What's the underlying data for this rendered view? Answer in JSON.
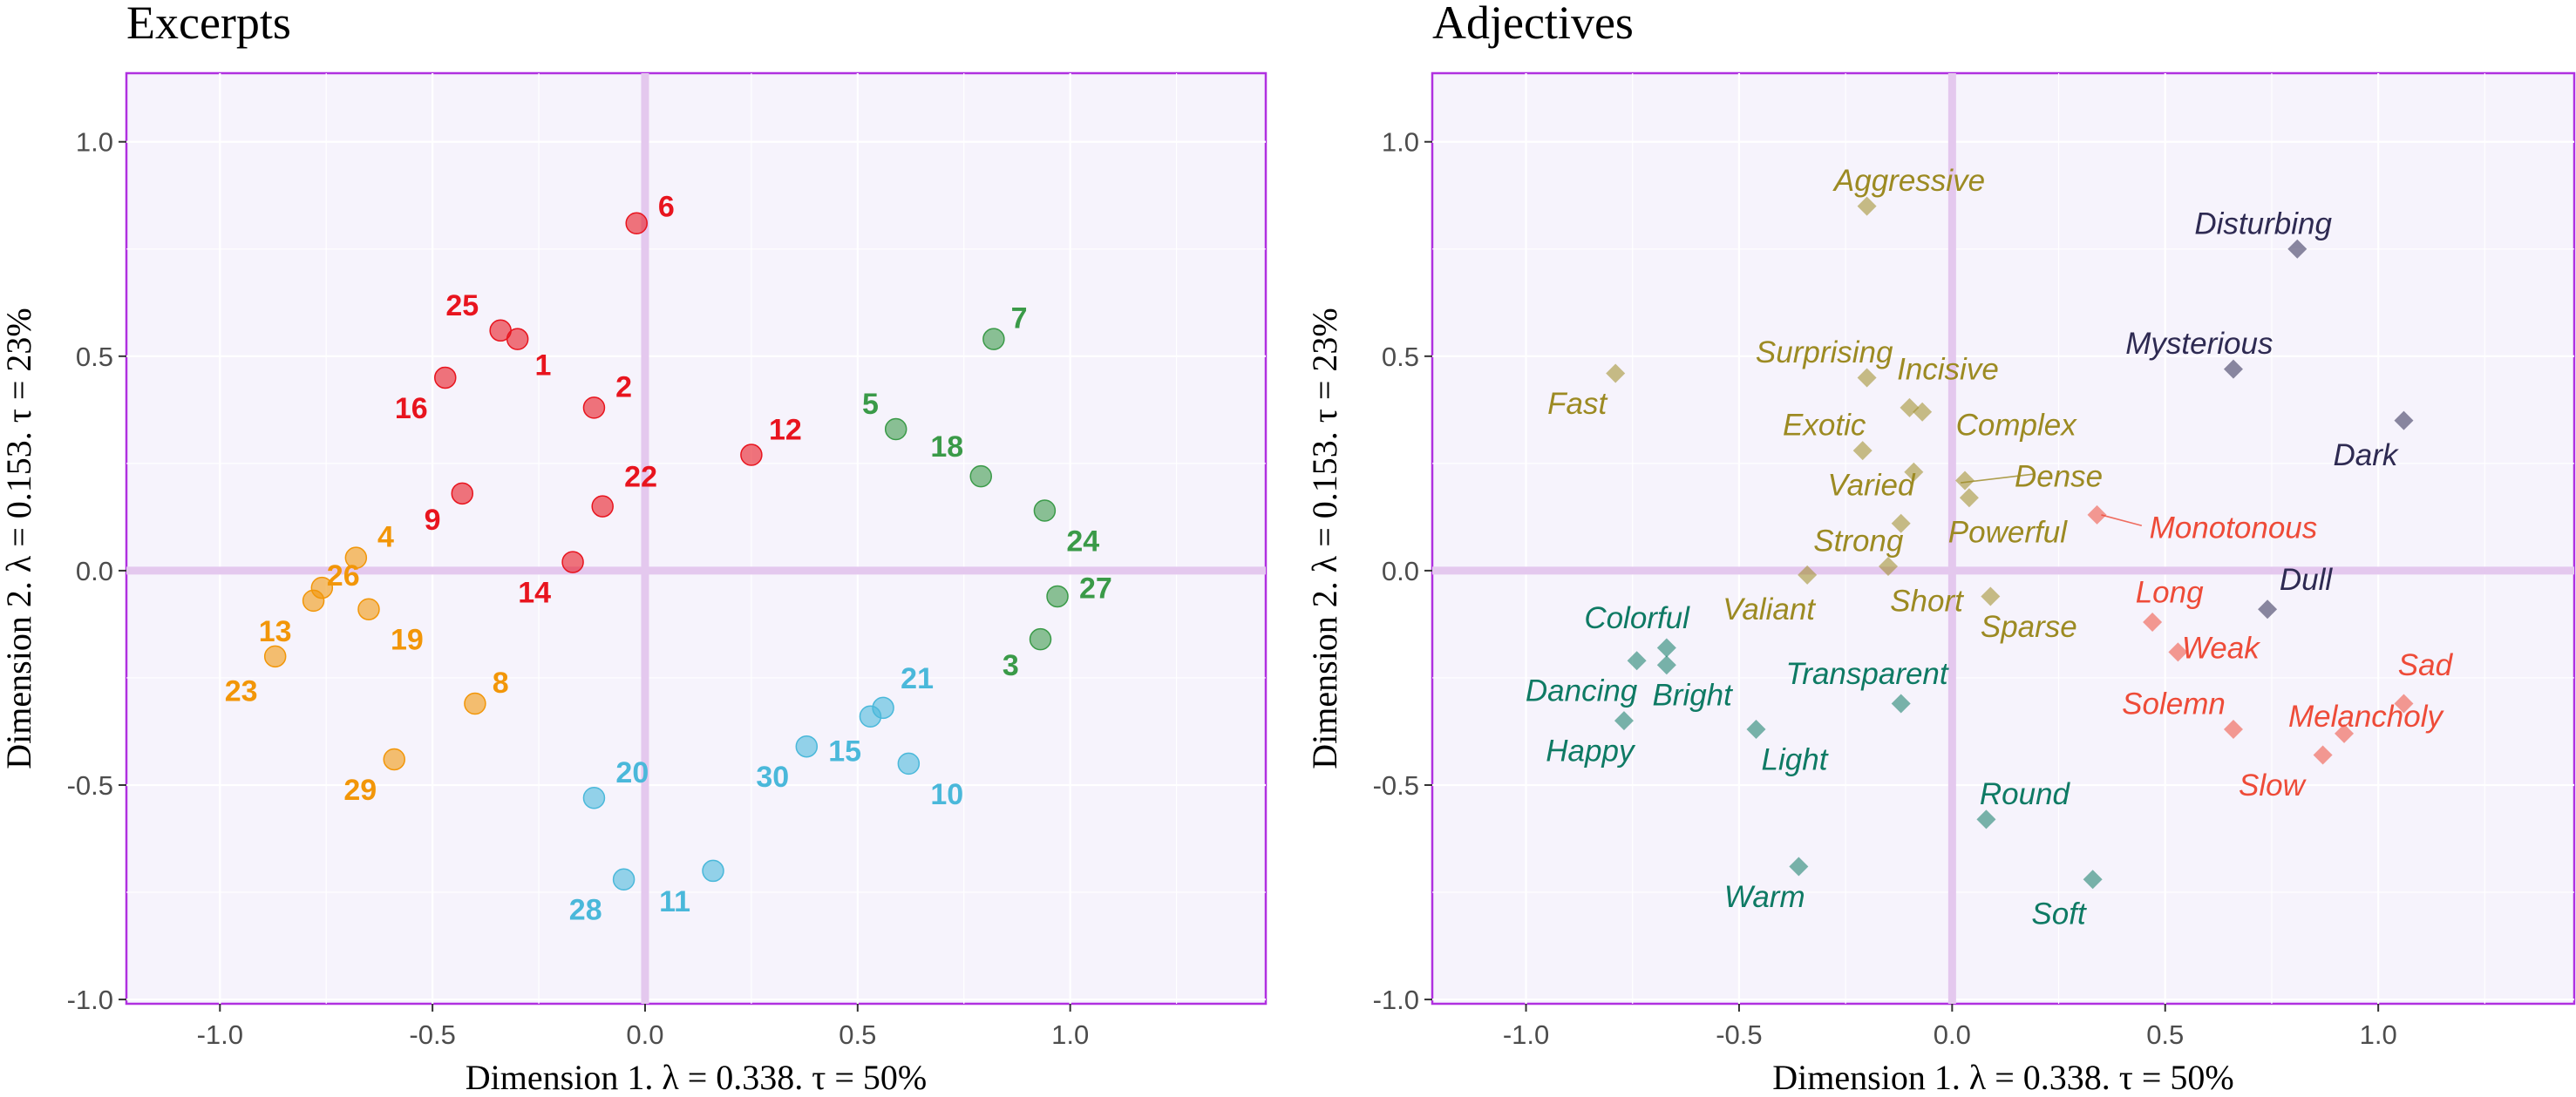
{
  "colors": {
    "red": "#e8141e",
    "orange": "#f29608",
    "green": "#3a9a48",
    "blue": "#4ab8da",
    "olive": "#9c8a22",
    "navy": "#2e2a52",
    "salmon": "#ee4b38",
    "teal": "#0e7a64",
    "panel_bg": "#f6f3fc",
    "panel_border": "#b030e0",
    "grid": "#ffffff",
    "zero_line": "#e4c8ee"
  },
  "chart_data": [
    {
      "type": "scatter",
      "title": "Excerpts",
      "xlabel": "Dimension 1.   λ = 0.338.  τ = 50%",
      "ylabel": "Dimension 2.   λ = 0.153.  τ = 23%",
      "xlim": [
        -1.22,
        1.46
      ],
      "ylim": [
        -1.01,
        1.16
      ],
      "xticks": [
        "-1.0",
        "-0.5",
        "0.0",
        "0.5",
        "1.0"
      ],
      "yticks": [
        "1.0",
        "0.5",
        "0.0",
        "-0.5",
        "-1.0"
      ],
      "grid": true,
      "marker": "circle",
      "series": [
        {
          "color_key": "red",
          "points": [
            {
              "label": "6",
              "x": -0.02,
              "y": 0.81,
              "lx": 0.05,
              "ly": 0.85
            },
            {
              "label": "25",
              "x": -0.34,
              "y": 0.56,
              "lx": -0.43,
              "ly": 0.62
            },
            {
              "label": "1",
              "x": -0.3,
              "y": 0.54,
              "lx": -0.24,
              "ly": 0.48
            },
            {
              "label": "2",
              "x": -0.12,
              "y": 0.38,
              "lx": -0.05,
              "ly": 0.43
            },
            {
              "label": "16",
              "x": -0.47,
              "y": 0.45,
              "lx": -0.55,
              "ly": 0.38
            },
            {
              "label": "12",
              "x": 0.25,
              "y": 0.27,
              "lx": 0.33,
              "ly": 0.33
            },
            {
              "label": "22",
              "x": -0.1,
              "y": 0.15,
              "lx": -0.01,
              "ly": 0.22
            },
            {
              "label": "9",
              "x": -0.43,
              "y": 0.18,
              "lx": -0.5,
              "ly": 0.12
            },
            {
              "label": "14",
              "x": -0.17,
              "y": 0.02,
              "lx": -0.26,
              "ly": -0.05
            }
          ]
        },
        {
          "color_key": "orange",
          "points": [
            {
              "label": "4",
              "x": -0.68,
              "y": 0.03,
              "lx": -0.61,
              "ly": 0.08
            },
            {
              "label": "26",
              "x": -0.76,
              "y": -0.04,
              "lx": -0.71,
              "ly": -0.01
            },
            {
              "label": "13",
              "x": -0.78,
              "y": -0.07,
              "lx": -0.87,
              "ly": -0.14
            },
            {
              "label": "19",
              "x": -0.65,
              "y": -0.09,
              "lx": -0.56,
              "ly": -0.16
            },
            {
              "label": "23",
              "x": -0.87,
              "y": -0.2,
              "lx": -0.95,
              "ly": -0.28
            },
            {
              "label": "8",
              "x": -0.4,
              "y": -0.31,
              "lx": -0.34,
              "ly": -0.26
            },
            {
              "label": "29",
              "x": -0.59,
              "y": -0.44,
              "lx": -0.67,
              "ly": -0.51
            }
          ]
        },
        {
          "color_key": "green",
          "points": [
            {
              "label": "7",
              "x": 0.82,
              "y": 0.54,
              "lx": 0.88,
              "ly": 0.59
            },
            {
              "label": "5",
              "x": 0.59,
              "y": 0.33,
              "lx": 0.53,
              "ly": 0.39
            },
            {
              "label": "18",
              "x": 0.79,
              "y": 0.22,
              "lx": 0.71,
              "ly": 0.29
            },
            {
              "label": "24",
              "x": 0.94,
              "y": 0.14,
              "lx": 1.03,
              "ly": 0.07
            },
            {
              "label": "27",
              "x": 0.97,
              "y": -0.06,
              "lx": 1.06,
              "ly": -0.04
            },
            {
              "label": "3",
              "x": 0.93,
              "y": -0.16,
              "lx": 0.86,
              "ly": -0.22
            }
          ]
        },
        {
          "color_key": "blue",
          "points": [
            {
              "label": "21",
              "x": 0.56,
              "y": -0.32,
              "lx": 0.64,
              "ly": -0.25
            },
            {
              "label": "15",
              "x": 0.53,
              "y": -0.34,
              "lx": 0.47,
              "ly": -0.42
            },
            {
              "label": "30",
              "x": 0.38,
              "y": -0.41,
              "lx": 0.3,
              "ly": -0.48
            },
            {
              "label": "10",
              "x": 0.62,
              "y": -0.45,
              "lx": 0.71,
              "ly": -0.52
            },
            {
              "label": "20",
              "x": -0.12,
              "y": -0.53,
              "lx": -0.03,
              "ly": -0.47
            },
            {
              "label": "11",
              "x": 0.16,
              "y": -0.7,
              "lx": 0.07,
              "ly": -0.77
            },
            {
              "label": "28",
              "x": -0.05,
              "y": -0.72,
              "lx": -0.14,
              "ly": -0.79
            }
          ]
        }
      ]
    },
    {
      "type": "scatter",
      "title": "Adjectives",
      "xlabel": "Dimension 1.   λ = 0.338.  τ = 50%",
      "ylabel": "Dimension 2.   λ = 0.153.  τ = 23%",
      "xlim": [
        -1.22,
        1.46
      ],
      "ylim": [
        -1.01,
        1.16
      ],
      "xticks": [
        "-1.0",
        "-0.5",
        "0.0",
        "0.5",
        "1.0"
      ],
      "yticks": [
        "1.0",
        "0.5",
        "0.0",
        "-0.5",
        "-1.0"
      ],
      "grid": true,
      "marker": "diamond",
      "series": [
        {
          "color_key": "olive",
          "points": [
            {
              "label": "Aggressive",
              "x": -0.2,
              "y": 0.85,
              "lx": -0.1,
              "ly": 0.91
            },
            {
              "label": "Fast",
              "x": -0.79,
              "y": 0.46,
              "lx": -0.88,
              "ly": 0.39
            },
            {
              "label": "Surprising",
              "x": -0.2,
              "y": 0.45,
              "lx": -0.3,
              "ly": 0.51
            },
            {
              "label": "Incisive",
              "x": -0.1,
              "y": 0.38,
              "lx": -0.01,
              "ly": 0.47
            },
            {
              "label": "Complex",
              "x": -0.07,
              "y": 0.37,
              "lx": 0.15,
              "ly": 0.34
            },
            {
              "label": "Exotic",
              "x": -0.21,
              "y": 0.28,
              "lx": -0.3,
              "ly": 0.34
            },
            {
              "label": "Varied",
              "x": -0.09,
              "y": 0.23,
              "lx": -0.19,
              "ly": 0.2
            },
            {
              "label": "Dense",
              "x": 0.03,
              "y": 0.21,
              "lx": 0.25,
              "ly": 0.22
            },
            {
              "label": "Powerful",
              "x": 0.04,
              "y": 0.17,
              "lx": 0.13,
              "ly": 0.09
            },
            {
              "label": "Strong",
              "x": -0.12,
              "y": 0.11,
              "lx": -0.22,
              "ly": 0.07
            },
            {
              "label": "Valiant",
              "x": -0.34,
              "y": -0.01,
              "lx": -0.43,
              "ly": -0.09
            },
            {
              "label": "Short",
              "x": -0.15,
              "y": 0.01,
              "lx": -0.06,
              "ly": -0.07
            },
            {
              "label": "Sparse",
              "x": 0.09,
              "y": -0.06,
              "lx": 0.18,
              "ly": -0.13
            }
          ]
        },
        {
          "color_key": "navy",
          "points": [
            {
              "label": "Disturbing",
              "x": 0.81,
              "y": 0.75,
              "lx": 0.73,
              "ly": 0.81
            },
            {
              "label": "Mysterious",
              "x": 0.66,
              "y": 0.47,
              "lx": 0.58,
              "ly": 0.53
            },
            {
              "label": "Dark",
              "x": 1.06,
              "y": 0.35,
              "lx": 0.97,
              "ly": 0.27
            },
            {
              "label": "Dull",
              "x": 0.74,
              "y": -0.09,
              "lx": 0.83,
              "ly": -0.02
            }
          ]
        },
        {
          "color_key": "salmon",
          "points": [
            {
              "label": "Monotonous",
              "x": 0.34,
              "y": 0.13,
              "lx": 0.66,
              "ly": 0.1
            },
            {
              "label": "Long",
              "x": 0.47,
              "y": -0.12,
              "lx": 0.51,
              "ly": -0.05
            },
            {
              "label": "Weak",
              "x": 0.53,
              "y": -0.19,
              "lx": 0.63,
              "ly": -0.18
            },
            {
              "label": "Sad",
              "x": 1.06,
              "y": -0.31,
              "lx": 1.11,
              "ly": -0.22
            },
            {
              "label": "Solemn",
              "x": 0.66,
              "y": -0.37,
              "lx": 0.52,
              "ly": -0.31
            },
            {
              "label": "Melancholy",
              "x": 0.92,
              "y": -0.38,
              "lx": 0.97,
              "ly": -0.34
            },
            {
              "label": "Slow",
              "x": 0.87,
              "y": -0.43,
              "lx": 0.75,
              "ly": -0.5
            }
          ]
        },
        {
          "color_key": "teal",
          "points": [
            {
              "label": "Colorful",
              "x": -0.67,
              "y": -0.18,
              "lx": -0.74,
              "ly": -0.11
            },
            {
              "label": "Dancing",
              "x": -0.74,
              "y": -0.21,
              "lx": -0.87,
              "ly": -0.28
            },
            {
              "label": "Bright",
              "x": -0.67,
              "y": -0.22,
              "lx": -0.61,
              "ly": -0.29
            },
            {
              "label": "Transparent",
              "x": -0.12,
              "y": -0.31,
              "lx": -0.2,
              "ly": -0.24
            },
            {
              "label": "Happy",
              "x": -0.77,
              "y": -0.35,
              "lx": -0.85,
              "ly": -0.42
            },
            {
              "label": "Light",
              "x": -0.46,
              "y": -0.37,
              "lx": -0.37,
              "ly": -0.44
            },
            {
              "label": "Round",
              "x": 0.08,
              "y": -0.58,
              "lx": 0.17,
              "ly": -0.52
            },
            {
              "label": "Warm",
              "x": -0.36,
              "y": -0.69,
              "lx": -0.44,
              "ly": -0.76
            },
            {
              "label": "Soft",
              "x": 0.33,
              "y": -0.72,
              "lx": 0.25,
              "ly": -0.8
            }
          ]
        }
      ]
    }
  ]
}
